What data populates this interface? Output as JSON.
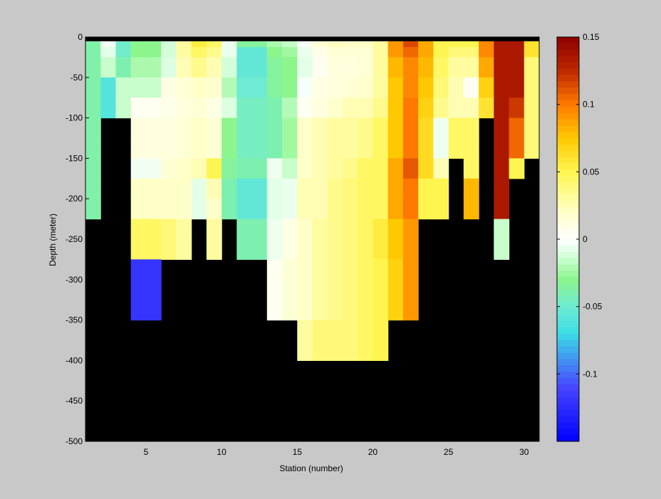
{
  "chart_data": {
    "type": "heatmap",
    "title": "",
    "xlabel": "Station (number)",
    "ylabel": "Depth (meter)",
    "xlim": [
      1,
      31
    ],
    "ylim": [
      -500,
      0
    ],
    "x_ticks": [
      5,
      10,
      15,
      20,
      25,
      30
    ],
    "y_ticks": [
      0,
      -50,
      -100,
      -150,
      -200,
      -250,
      -300,
      -350,
      -400,
      -450,
      -500
    ],
    "colorbar": {
      "range": [
        -0.15,
        0.15
      ],
      "ticks": [
        0.15,
        0.1,
        0.05,
        0,
        -0.05,
        -0.1
      ],
      "colormap": "jet-to-white diverging (blue - cyan - green - white - yellow - orange - dark red)"
    },
    "no_data_color": "#000000",
    "background_color": "#c8c8c8",
    "depth_bins": [
      0,
      -12.5,
      -25,
      -50,
      -75,
      -100,
      -125,
      -150,
      -175,
      -200,
      -225,
      -250,
      -275,
      -300,
      -350,
      -400
    ],
    "grid": "values per station (columns = stations 1..30), rows = depth bins top to bottom; null = no data",
    "values": [
      [
        -0.038,
        -0.004,
        -0.048,
        -0.03,
        -0.03,
        -0.012,
        0.03,
        0.055,
        0.045,
        -0.006,
        -0.035,
        -0.035,
        -0.022,
        -0.016,
        -0.002,
        0.015,
        0.022,
        0.02,
        0.02,
        0.03,
        0.09,
        0.115,
        0.085,
        0.05,
        0.05,
        0.05,
        0.095,
        0.135,
        0.135,
        0.06
      ],
      [
        -0.038,
        -0.008,
        -0.048,
        -0.03,
        -0.03,
        -0.012,
        0.03,
        0.045,
        0.035,
        -0.006,
        -0.055,
        -0.055,
        -0.03,
        -0.025,
        -0.006,
        0.008,
        0.015,
        0.015,
        0.015,
        0.03,
        0.09,
        0.105,
        0.085,
        0.05,
        0.04,
        0.04,
        0.095,
        0.135,
        0.135,
        0.06
      ],
      [
        -0.038,
        -0.015,
        -0.04,
        -0.022,
        -0.022,
        -0.01,
        0.025,
        0.035,
        0.025,
        -0.012,
        -0.055,
        -0.055,
        -0.035,
        -0.03,
        -0.008,
        0.005,
        0.012,
        0.012,
        0.015,
        0.03,
        0.08,
        0.095,
        0.08,
        0.045,
        0.03,
        0.03,
        0.085,
        0.135,
        0.135,
        0.04
      ],
      [
        -0.038,
        -0.06,
        -0.015,
        -0.015,
        -0.015,
        0.01,
        0.015,
        0.02,
        0.018,
        -0.02,
        -0.05,
        -0.05,
        -0.035,
        -0.03,
        -0.002,
        0.01,
        0.012,
        0.015,
        0.018,
        0.03,
        0.075,
        0.095,
        0.075,
        0.04,
        0.025,
        0.005,
        0.07,
        0.135,
        0.135,
        0.04
      ],
      [
        -0.038,
        -0.06,
        -0.015,
        0.005,
        0.005,
        0.008,
        0.012,
        0.015,
        0.01,
        -0.01,
        -0.045,
        -0.045,
        -0.04,
        -0.02,
        0.005,
        0.012,
        0.018,
        0.025,
        0.025,
        0.035,
        0.075,
        0.1,
        0.07,
        0.035,
        0.025,
        0.025,
        0.06,
        0.135,
        0.12,
        0.04
      ],
      [
        -0.038,
        null,
        null,
        0.012,
        0.012,
        0.012,
        0.015,
        0.02,
        0.015,
        -0.03,
        -0.045,
        -0.045,
        -0.04,
        -0.025,
        0.02,
        0.025,
        0.03,
        0.03,
        0.035,
        0.045,
        0.075,
        0.1,
        0.065,
        -0.005,
        0.045,
        0.045,
        null,
        0.135,
        0.105,
        0.04
      ],
      [
        -0.038,
        null,
        null,
        0.012,
        0.012,
        0.012,
        0.015,
        0.02,
        0.015,
        -0.03,
        -0.045,
        -0.045,
        -0.04,
        -0.025,
        0.02,
        0.025,
        0.03,
        0.03,
        0.035,
        0.045,
        0.075,
        0.1,
        0.065,
        -0.005,
        0.045,
        0.045,
        null,
        0.135,
        0.105,
        0.04
      ],
      [
        -0.038,
        null,
        null,
        -0.004,
        -0.004,
        0.015,
        0.02,
        0.025,
        0.05,
        -0.035,
        -0.04,
        -0.04,
        -0.005,
        -0.015,
        0.02,
        0.025,
        0.03,
        0.035,
        0.045,
        0.045,
        0.085,
        0.11,
        0.065,
        0.025,
        null,
        0.045,
        null,
        0.135,
        0.05,
        null
      ],
      [
        -0.038,
        null,
        null,
        0.02,
        0.02,
        0.02,
        0.02,
        -0.008,
        0.025,
        -0.04,
        -0.055,
        -0.055,
        -0.008,
        -0.006,
        0.025,
        0.025,
        0.035,
        0.04,
        0.045,
        0.045,
        0.085,
        0.1,
        0.05,
        0.05,
        null,
        0.08,
        null,
        0.135,
        null,
        null
      ],
      [
        -0.038,
        null,
        null,
        0.02,
        0.02,
        0.02,
        0.02,
        -0.008,
        0.02,
        -0.04,
        -0.055,
        -0.055,
        -0.008,
        -0.006,
        0.025,
        0.025,
        0.035,
        0.04,
        0.045,
        0.045,
        0.085,
        0.1,
        0.05,
        0.05,
        null,
        0.08,
        null,
        0.135,
        null,
        null
      ],
      [
        null,
        null,
        null,
        0.045,
        0.045,
        0.04,
        0.03,
        null,
        0.03,
        null,
        -0.04,
        -0.04,
        -0.005,
        0.01,
        0.02,
        0.03,
        0.035,
        0.04,
        0.045,
        0.055,
        0.075,
        0.09,
        null,
        null,
        null,
        null,
        null,
        -0.015,
        null,
        null
      ],
      [
        null,
        null,
        null,
        0.045,
        0.045,
        0.04,
        0.03,
        null,
        0.03,
        null,
        -0.04,
        -0.04,
        -0.005,
        0.01,
        0.02,
        0.03,
        0.035,
        0.04,
        0.045,
        0.055,
        0.075,
        0.09,
        null,
        null,
        null,
        null,
        null,
        -0.015,
        null,
        null
      ],
      [
        null,
        null,
        null,
        -0.12,
        -0.12,
        null,
        null,
        null,
        null,
        null,
        null,
        null,
        0.005,
        0.015,
        0.02,
        0.03,
        0.035,
        0.04,
        0.045,
        0.05,
        0.07,
        0.09,
        null,
        null,
        null,
        null,
        null,
        null,
        null,
        null
      ],
      [
        null,
        null,
        null,
        -0.12,
        -0.12,
        null,
        null,
        null,
        null,
        null,
        null,
        null,
        0.005,
        0.015,
        0.02,
        0.03,
        0.035,
        0.04,
        0.045,
        0.05,
        0.07,
        0.09,
        null,
        null,
        null,
        null,
        null,
        null,
        null,
        null
      ],
      [
        null,
        null,
        null,
        null,
        null,
        null,
        null,
        null,
        null,
        null,
        null,
        null,
        null,
        null,
        0.03,
        0.04,
        0.04,
        0.04,
        0.045,
        0.05,
        null,
        null,
        null,
        null,
        null,
        null,
        null,
        null,
        null,
        null
      ],
      [
        null,
        null,
        null,
        null,
        null,
        null,
        null,
        null,
        null,
        null,
        null,
        null,
        null,
        null,
        0.03,
        0.04,
        0.04,
        0.04,
        0.045,
        0.05,
        null,
        null,
        null,
        null,
        null,
        null,
        null,
        null,
        null,
        null
      ]
    ]
  }
}
